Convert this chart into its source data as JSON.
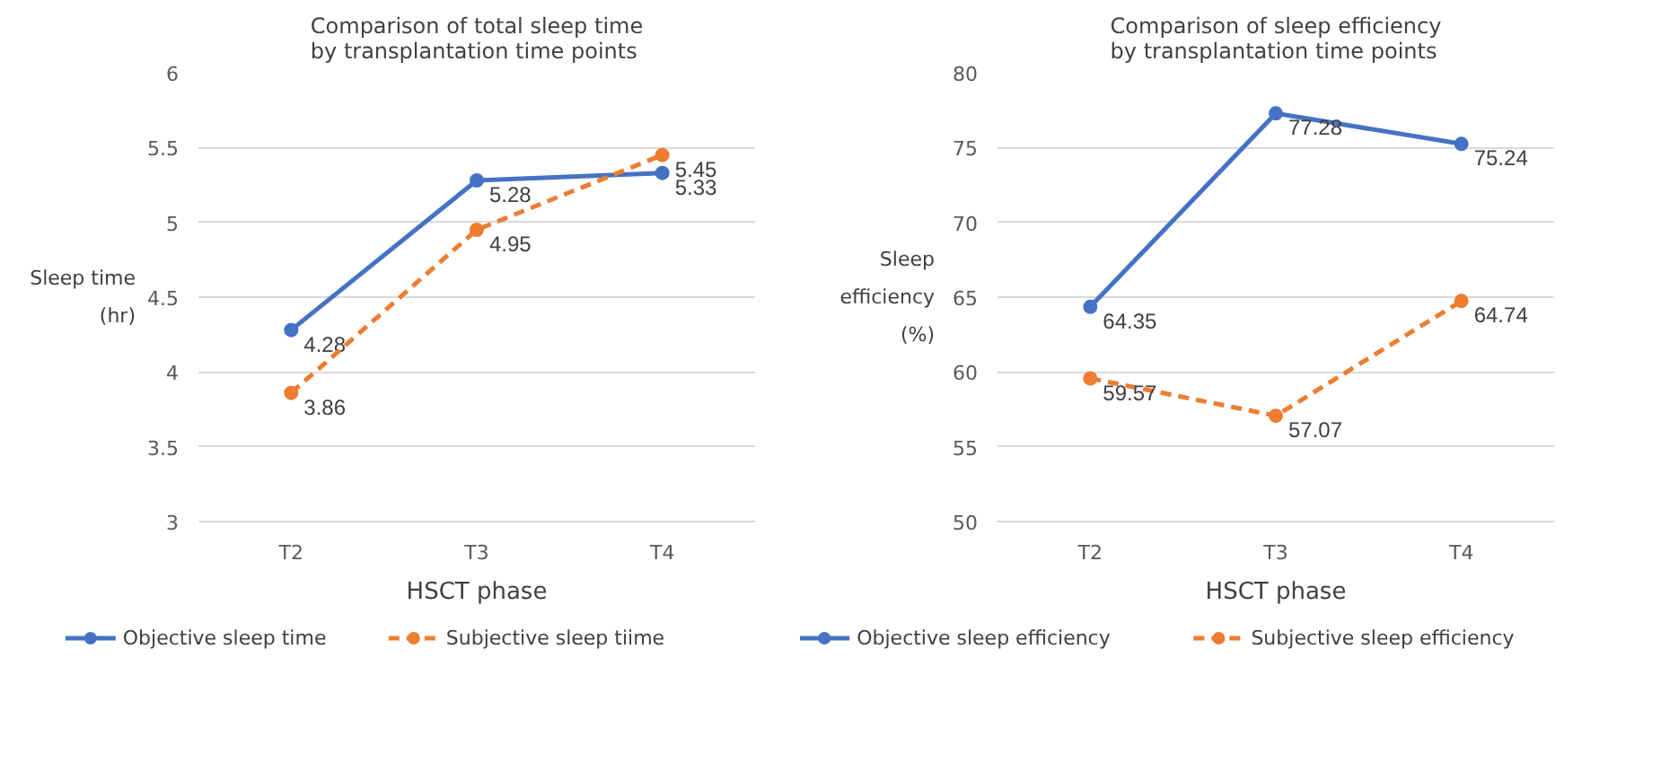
{
  "chart_data": [
    {
      "type": "line",
      "title": "Comparison of total sleep time by transplantation time points",
      "xlabel": "HSCT phase",
      "ylabel": "Sleep time (hr)",
      "categories": [
        "T2",
        "T3",
        "T4"
      ],
      "ylim": [
        3,
        6
      ],
      "yticks": [
        3,
        3.5,
        4,
        4.5,
        5,
        5.5,
        6
      ],
      "grid": "y",
      "legend": "bottom",
      "marker": "circle",
      "data_labels": true,
      "series": [
        {
          "name": "Objective sleep time",
          "color": "#4472c4",
          "values": [
            4.28,
            5.28,
            5.33
          ],
          "line_style": "solid"
        },
        {
          "name": "Subjective sleep tiime",
          "color": "#ed7d31",
          "values": [
            3.86,
            4.95,
            5.45
          ],
          "line_style": "dashed"
        }
      ]
    },
    {
      "type": "line",
      "title": "Comparison of sleep efficiency by transplantation time points",
      "xlabel": "HSCT phase",
      "ylabel": "Sleep efficiency (%)",
      "categories": [
        "T2",
        "T3",
        "T4"
      ],
      "ylim": [
        50,
        80
      ],
      "yticks": [
        50,
        55,
        60,
        65,
        70,
        75,
        80
      ],
      "grid": "y",
      "legend": "bottom",
      "marker": "circle",
      "data_labels": true,
      "series": [
        {
          "name": "Objective sleep efficiency",
          "color": "#4472c4",
          "values": [
            64.35,
            77.28,
            75.24
          ],
          "line_style": "solid"
        },
        {
          "name": "Subjective sleep efficiency",
          "color": "#ed7d31",
          "values": [
            59.57,
            57.07,
            64.74
          ],
          "line_style": "dashed"
        }
      ]
    }
  ]
}
